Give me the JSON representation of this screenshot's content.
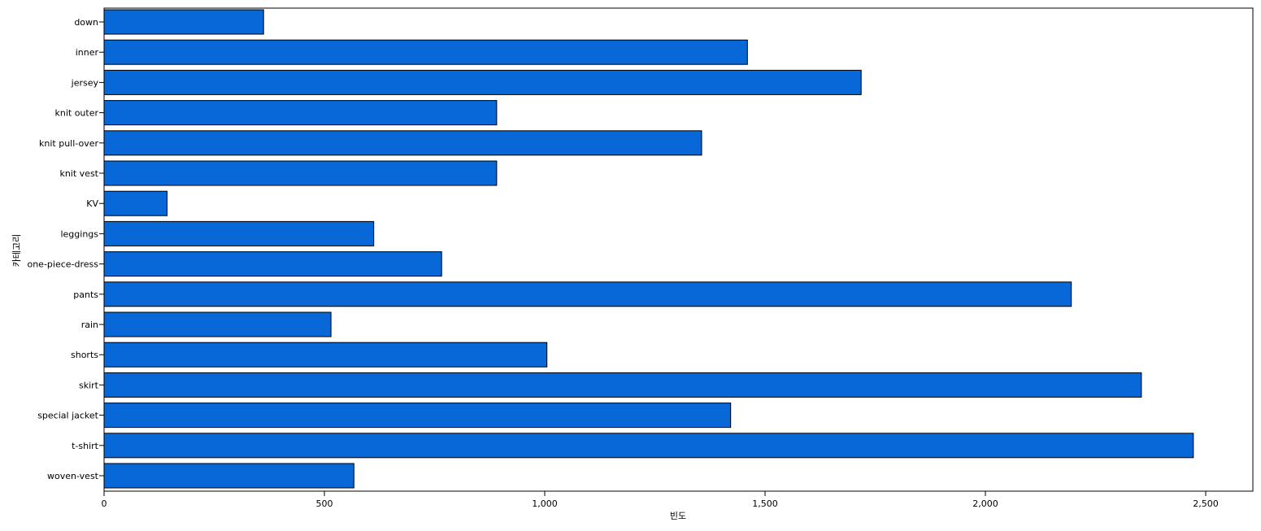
{
  "chart_data": {
    "type": "bar",
    "orientation": "horizontal",
    "categories": [
      "down",
      "inner",
      "jersey",
      "knit outer",
      "knit pull-over",
      "knit vest",
      "KV",
      "leggings",
      "one-piece-dress",
      "pants",
      "rain",
      "shorts",
      "skirt",
      "special jacket",
      "t-shirt",
      "woven-vest"
    ],
    "values": [
      362,
      1460,
      1718,
      891,
      1356,
      891,
      143,
      612,
      766,
      2195,
      515,
      1005,
      2354,
      1422,
      2472,
      567
    ],
    "xlabel": "빈도",
    "ylabel": "카테고리",
    "xlim": [
      0,
      2600
    ],
    "xticks": [
      0,
      500,
      1000,
      1500,
      2000,
      2500
    ],
    "xtick_labels": [
      "0",
      "500",
      "1,000",
      "1,500",
      "2,000",
      "2,500"
    ],
    "grid": false,
    "legend": "none",
    "colors": {
      "bar_fill": "#0868D8",
      "bar_stroke": "#000000",
      "background": "#ffffff"
    }
  }
}
